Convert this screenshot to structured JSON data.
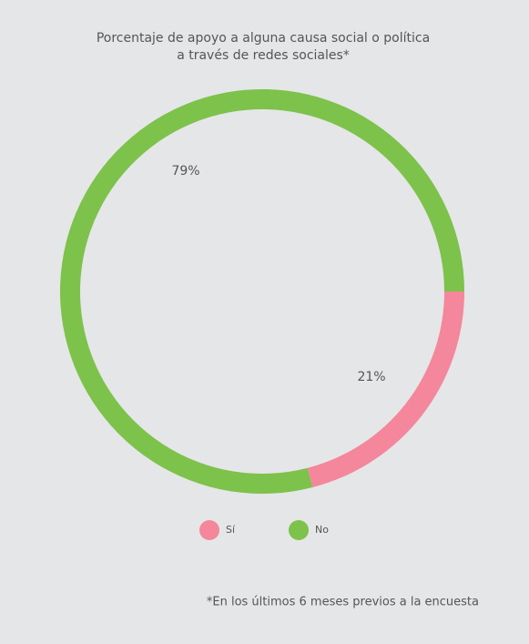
{
  "chart_data": {
    "type": "donut",
    "title": [
      "Porcentaje de apoyo a alguna causa social o política",
      "a través de redes sociales*"
    ],
    "categories": [
      "Sí",
      "No"
    ],
    "values": [
      21,
      79
    ],
    "value_labels": [
      "21%",
      "79%"
    ],
    "colors": [
      "#f4879b",
      "#7dc24b"
    ],
    "footnote": "*En los últimos 6 meses previos a la encuesta"
  }
}
